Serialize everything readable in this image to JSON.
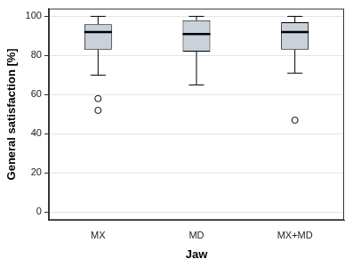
{
  "chart_data": {
    "type": "box",
    "xlabel": "Jaw",
    "ylabel": "General satisfaction [%]",
    "categories": [
      "MX",
      "MD",
      "MX+MD"
    ],
    "stats": [
      {
        "min": 70,
        "q1": 83,
        "median": 92,
        "q3": 96,
        "max": 100,
        "outliers": [
          58,
          52
        ]
      },
      {
        "min": 65,
        "q1": 82,
        "median": 91,
        "q3": 98,
        "max": 100,
        "outliers": []
      },
      {
        "min": 71,
        "q1": 83,
        "median": 92,
        "q3": 97,
        "max": 100,
        "outliers": [
          47
        ]
      }
    ],
    "color": "#c9d1da",
    "ylim": [
      -4,
      104
    ],
    "yticks": [
      0,
      20,
      40,
      60,
      80,
      100
    ],
    "grid": true
  }
}
